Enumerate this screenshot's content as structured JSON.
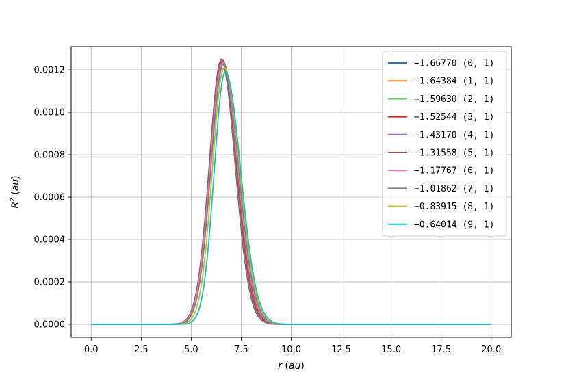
{
  "chart_data": {
    "type": "line",
    "title": "",
    "xlabel": "r (au)",
    "ylabel": "R² (au)",
    "xlim": [
      -1.0,
      21.0
    ],
    "ylim": [
      -6.15e-05,
      0.00131
    ],
    "xticks": [
      "0.0",
      "2.5",
      "5.0",
      "7.5",
      "10.0",
      "12.5",
      "15.0",
      "17.5",
      "20.0"
    ],
    "xtick_values": [
      0.0,
      2.5,
      5.0,
      7.5,
      10.0,
      12.5,
      15.0,
      17.5,
      20.0
    ],
    "yticks": [
      "0.0000",
      "0.0002",
      "0.0004",
      "0.0006",
      "0.0008",
      "0.0010",
      "0.0012"
    ],
    "ytick_values": [
      0.0,
      0.0002,
      0.0004,
      0.0006,
      0.0008,
      0.001,
      0.0012
    ],
    "grid": true,
    "legend_position": "top-right",
    "x_range": [
      0.0,
      20.0
    ],
    "series": [
      {
        "name": "−1.66770 (0, 1)",
        "color": "#1f77b4",
        "peak_x": 6.5,
        "peak_y": 0.001245,
        "sigma_left": 0.58,
        "sigma_right": 0.7
      },
      {
        "name": "−1.64384 (1, 1)",
        "color": "#ff7f0e",
        "peak_x": 6.52,
        "peak_y": 0.001248,
        "sigma_left": 0.6,
        "sigma_right": 0.71
      },
      {
        "name": "−1.59630 (2, 1)",
        "color": "#2ca02c",
        "peak_x": 6.54,
        "peak_y": 0.00125,
        "sigma_left": 0.62,
        "sigma_right": 0.72
      },
      {
        "name": "−1.52544 (3, 1)",
        "color": "#d62728",
        "peak_x": 6.53,
        "peak_y": 0.00125,
        "sigma_left": 0.62,
        "sigma_right": 0.72
      },
      {
        "name": "−1.43170 (4, 1)",
        "color": "#9467bd",
        "peak_x": 6.55,
        "peak_y": 0.001245,
        "sigma_left": 0.63,
        "sigma_right": 0.73
      },
      {
        "name": "−1.31558 (5, 1)",
        "color": "#8c564b",
        "peak_x": 6.57,
        "peak_y": 0.00124,
        "sigma_left": 0.64,
        "sigma_right": 0.74
      },
      {
        "name": "−1.17767 (6, 1)",
        "color": "#e377c2",
        "peak_x": 6.58,
        "peak_y": 0.001233,
        "sigma_left": 0.63,
        "sigma_right": 0.75
      },
      {
        "name": "−1.01862 (7, 1)",
        "color": "#7f7f7f",
        "peak_x": 6.61,
        "peak_y": 0.001225,
        "sigma_left": 0.62,
        "sigma_right": 0.76
      },
      {
        "name": "−0.83915 (8, 1)",
        "color": "#bcbd22",
        "peak_x": 6.65,
        "peak_y": 0.00121,
        "sigma_left": 0.59,
        "sigma_right": 0.77
      },
      {
        "name": "−0.64014 (9, 1)",
        "color": "#17becf",
        "peak_x": 6.7,
        "peak_y": 0.00119,
        "sigma_left": 0.55,
        "sigma_right": 0.78
      }
    ]
  }
}
